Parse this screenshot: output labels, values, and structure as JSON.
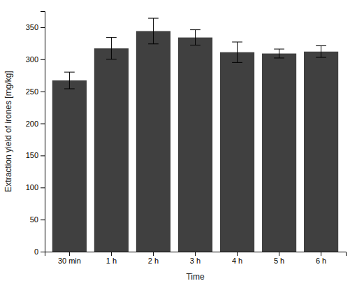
{
  "chart_data": {
    "type": "bar",
    "categories": [
      "30 min",
      "1 h",
      "2 h",
      "3 h",
      "4 h",
      "5 h",
      "6 h"
    ],
    "values": [
      267,
      317,
      344,
      334,
      311,
      309,
      312
    ],
    "errors": [
      13,
      17,
      20,
      12,
      16,
      7,
      9
    ],
    "color": "#404040",
    "xlabel": "Time",
    "ylabel": "Extraction yield of irones [mg/kg]",
    "ylim": [
      0,
      375
    ],
    "yticks": [
      0,
      50,
      100,
      150,
      200,
      250,
      300,
      350
    ],
    "grid": false
  }
}
